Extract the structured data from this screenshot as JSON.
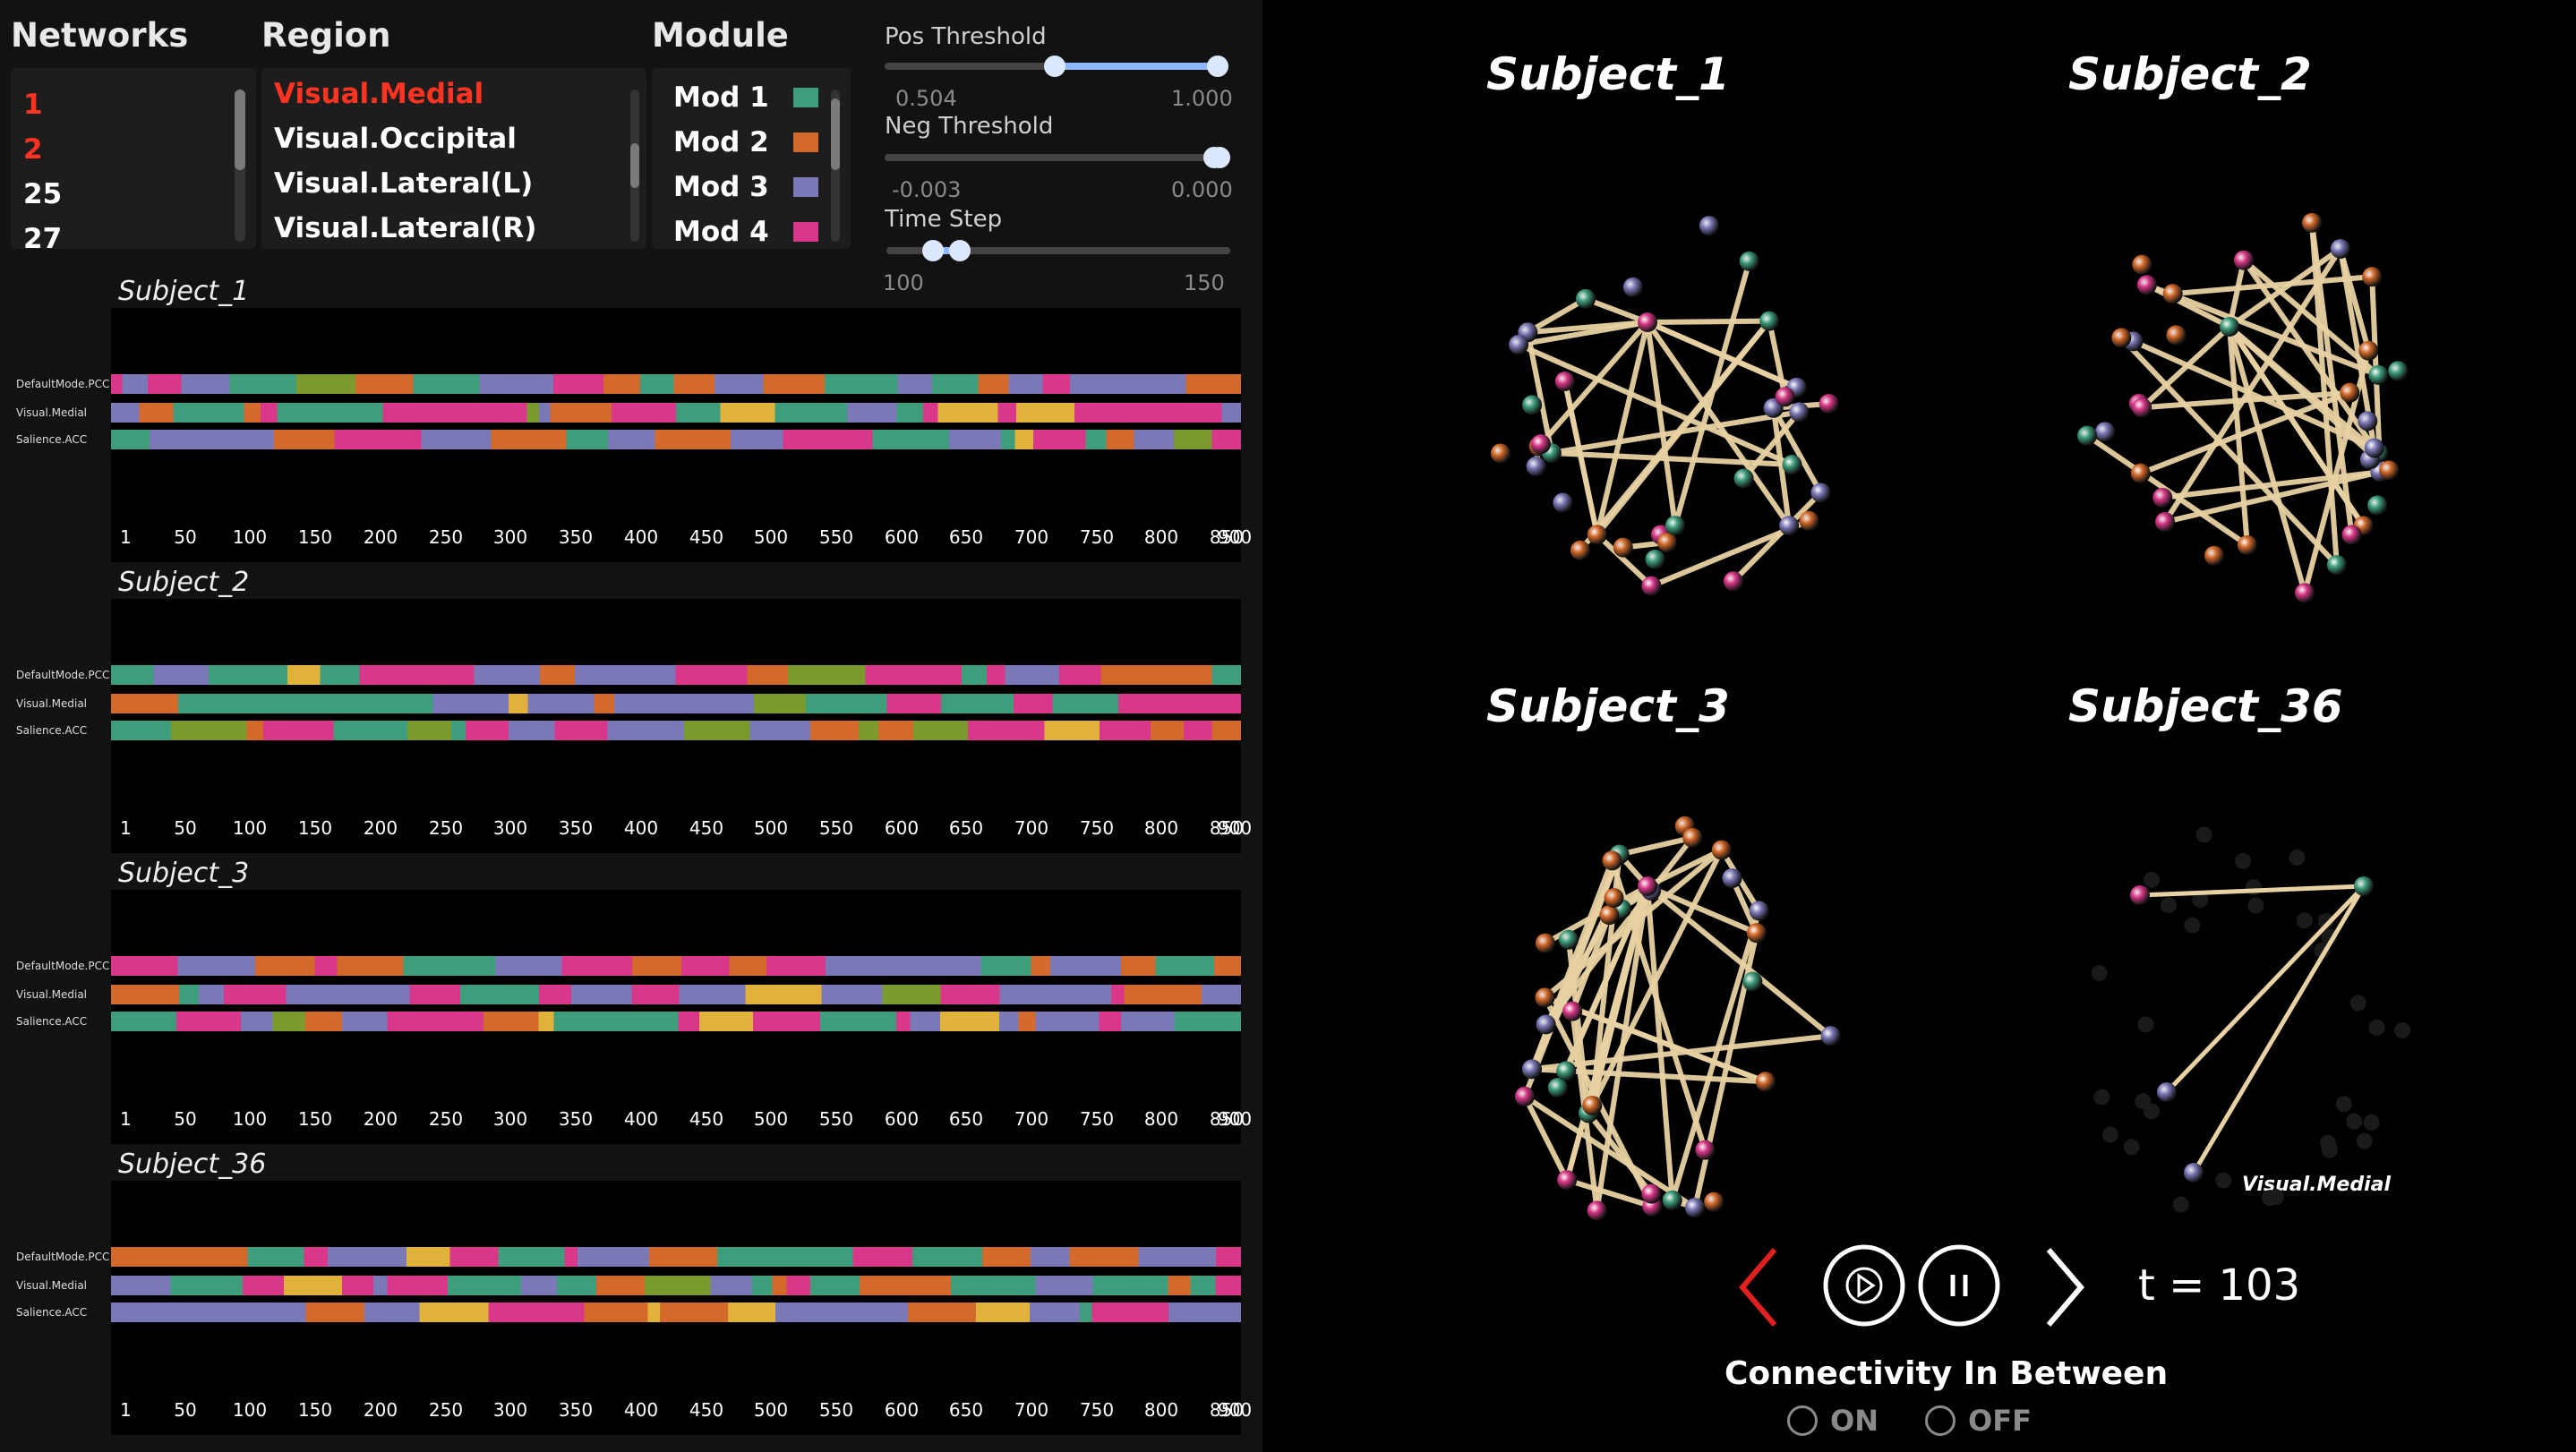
{
  "headers": {
    "networks": "Networks",
    "region": "Region",
    "module": "Module"
  },
  "networks": {
    "items": [
      {
        "label": "1",
        "selected": true
      },
      {
        "label": "2",
        "selected": true
      },
      {
        "label": "25",
        "selected": false
      },
      {
        "label": "27",
        "selected": false
      }
    ]
  },
  "region": {
    "items": [
      {
        "label": "Visual.Medial",
        "selected": true
      },
      {
        "label": "Visual.Occipital",
        "selected": false
      },
      {
        "label": "Visual.Lateral(L)",
        "selected": false
      },
      {
        "label": "Visual.Lateral(R)",
        "selected": false
      }
    ]
  },
  "module": {
    "items": [
      {
        "label": "Mod 1",
        "color": "#3e9e7c"
      },
      {
        "label": "Mod 2",
        "color": "#d3692a"
      },
      {
        "label": "Mod 3",
        "color": "#7b78b8"
      },
      {
        "label": "Mod 4",
        "color": "#d9388a"
      }
    ]
  },
  "controls": {
    "pos": {
      "label": "Pos Threshold",
      "min": "0.504",
      "max": "1.000"
    },
    "neg": {
      "label": "Neg Threshold",
      "min": "-0.003",
      "max": "0.000"
    },
    "time": {
      "label": "Time Step",
      "min": "100",
      "max": "150"
    }
  },
  "row_labels": [
    "DefaultMode.PCC",
    "Visual.Medial",
    "Salience.ACC"
  ],
  "ticks": [
    "1",
    "50",
    "100",
    "150",
    "200",
    "250",
    "300",
    "350",
    "400",
    "450",
    "500",
    "550",
    "600",
    "650",
    "700",
    "750",
    "800",
    "850",
    "900"
  ],
  "colors": {
    "teal": "#3e9e7c",
    "orange": "#d3692a",
    "purple": "#7b78b8",
    "pink": "#d9388a",
    "olive": "#7a9a2e",
    "yellow": "#e0b23a",
    "edge": "#e8d2a4",
    "accent_red": "#e02020"
  },
  "subjects": [
    {
      "name": "Subject_1"
    },
    {
      "name": "Subject_2"
    },
    {
      "name": "Subject_3"
    },
    {
      "name": "Subject_36"
    }
  ],
  "network_views": [
    {
      "title": "Subject_1"
    },
    {
      "title": "Subject_2"
    },
    {
      "title": "Subject_3"
    },
    {
      "title": "Subject_36",
      "node_label": "Visual.Medial"
    }
  ],
  "playback": {
    "t_label": "t = 103"
  },
  "connectivity": {
    "title": "Connectivity In Between",
    "on": "ON",
    "off": "OFF"
  }
}
